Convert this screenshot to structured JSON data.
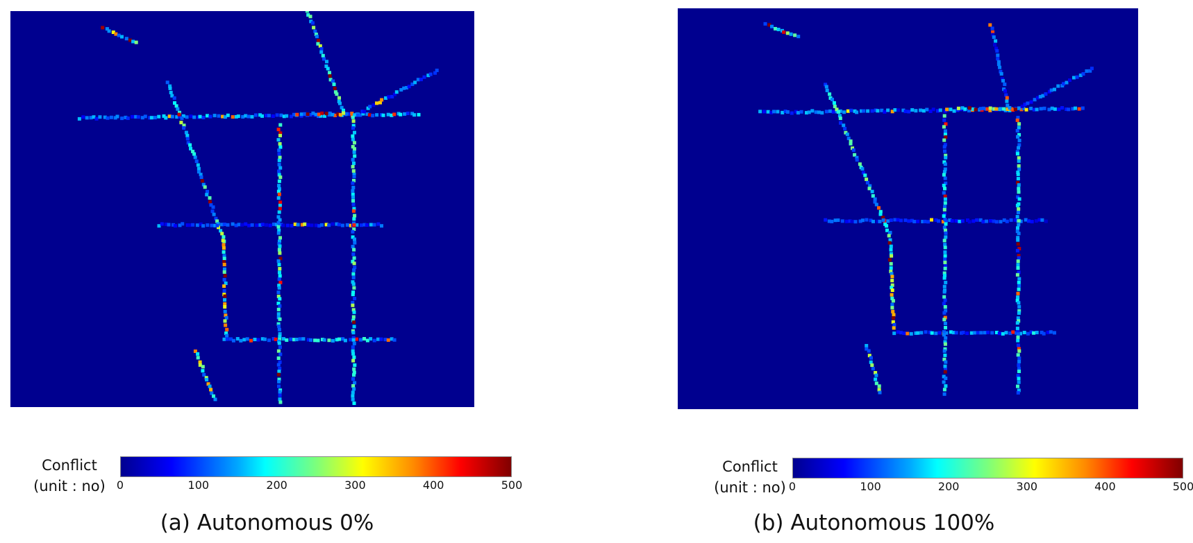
{
  "figure": {
    "panels": [
      {
        "caption": "(a) Autonomous 0%",
        "colorbar": {
          "label_line1": "Conflict",
          "label_line2": "(unit : no)",
          "ticks": [
            "0",
            "100",
            "200",
            "300",
            "400",
            "500"
          ]
        }
      },
      {
        "caption": "(b) Autonomous 100%",
        "colorbar": {
          "label_line1": "Conflict",
          "label_line2": "(unit : no)",
          "ticks": [
            "0",
            "100",
            "200",
            "300",
            "400",
            "500"
          ]
        }
      }
    ]
  },
  "chart_data": [
    {
      "type": "heatmap",
      "title": "(a) Autonomous 0%",
      "colorbar_label": "Conflict (unit : no)",
      "value_range": [
        0,
        500
      ],
      "colormap": "jet",
      "background_color": "#00008f",
      "road_segments": [
        {
          "name": "upper-horizontal",
          "from": [
            0.15,
            0.27
          ],
          "to": [
            0.88,
            0.26
          ],
          "level": 150
        },
        {
          "name": "upper-horizontal-hotspot",
          "from": [
            0.62,
            0.26
          ],
          "to": [
            0.75,
            0.26
          ],
          "level": 420
        },
        {
          "name": "upper-right-branch",
          "from": [
            0.75,
            0.26
          ],
          "to": [
            0.92,
            0.15
          ],
          "level": 130
        },
        {
          "name": "top-arc",
          "from": [
            0.64,
            0.0
          ],
          "to": [
            0.72,
            0.26
          ],
          "level": 230
        },
        {
          "name": "left-diagonal",
          "from": [
            0.34,
            0.18
          ],
          "to": [
            0.46,
            0.58
          ],
          "level": 240
        },
        {
          "name": "left-curve-lower",
          "from": [
            0.46,
            0.58
          ],
          "to": [
            0.465,
            0.82
          ],
          "level": 330
        },
        {
          "name": "middle-horizontal",
          "from": [
            0.32,
            0.54
          ],
          "to": [
            0.8,
            0.54
          ],
          "level": 110
        },
        {
          "name": "lower-horizontal",
          "from": [
            0.46,
            0.83
          ],
          "to": [
            0.83,
            0.83
          ],
          "level": 190
        },
        {
          "name": "vertical-center",
          "from": [
            0.58,
            0.29
          ],
          "to": [
            0.58,
            0.99
          ],
          "level": 220
        },
        {
          "name": "vertical-right",
          "from": [
            0.74,
            0.27
          ],
          "to": [
            0.74,
            0.99
          ],
          "level": 220
        },
        {
          "name": "lower-left-diagonal",
          "from": [
            0.4,
            0.86
          ],
          "to": [
            0.44,
            0.98
          ],
          "level": 300
        },
        {
          "name": "upper-left-dots",
          "from": [
            0.2,
            0.04
          ],
          "to": [
            0.27,
            0.08
          ],
          "level": 300
        }
      ]
    },
    {
      "type": "heatmap",
      "title": "(b) Autonomous 100%",
      "colorbar_label": "Conflict (unit : no)",
      "value_range": [
        0,
        500
      ],
      "colormap": "jet",
      "background_color": "#00008f",
      "road_segments": [
        {
          "name": "upper-horizontal",
          "from": [
            0.18,
            0.26
          ],
          "to": [
            0.88,
            0.25
          ],
          "level": 130
        },
        {
          "name": "upper-horizontal-hotspot",
          "from": [
            0.61,
            0.25
          ],
          "to": [
            0.74,
            0.25
          ],
          "level": 390
        },
        {
          "name": "upper-right-branch",
          "from": [
            0.74,
            0.25
          ],
          "to": [
            0.9,
            0.15
          ],
          "level": 120
        },
        {
          "name": "top-arc",
          "from": [
            0.68,
            0.04
          ],
          "to": [
            0.72,
            0.25
          ],
          "level": 110
        },
        {
          "name": "left-diagonal",
          "from": [
            0.32,
            0.19
          ],
          "to": [
            0.46,
            0.56
          ],
          "level": 210
        },
        {
          "name": "left-curve-lower",
          "from": [
            0.46,
            0.56
          ],
          "to": [
            0.47,
            0.8
          ],
          "level": 300
        },
        {
          "name": "middle-horizontal",
          "from": [
            0.32,
            0.53
          ],
          "to": [
            0.8,
            0.53
          ],
          "level": 100
        },
        {
          "name": "lower-horizontal",
          "from": [
            0.47,
            0.81
          ],
          "to": [
            0.82,
            0.81
          ],
          "level": 170
        },
        {
          "name": "vertical-center",
          "from": [
            0.58,
            0.27
          ],
          "to": [
            0.58,
            0.96
          ],
          "level": 200
        },
        {
          "name": "vertical-right",
          "from": [
            0.74,
            0.27
          ],
          "to": [
            0.74,
            0.96
          ],
          "level": 210
        },
        {
          "name": "lower-left-diagonal",
          "from": [
            0.41,
            0.84
          ],
          "to": [
            0.44,
            0.96
          ],
          "level": 270
        },
        {
          "name": "upper-left-dots",
          "from": [
            0.19,
            0.04
          ],
          "to": [
            0.26,
            0.07
          ],
          "level": 250
        }
      ]
    }
  ]
}
